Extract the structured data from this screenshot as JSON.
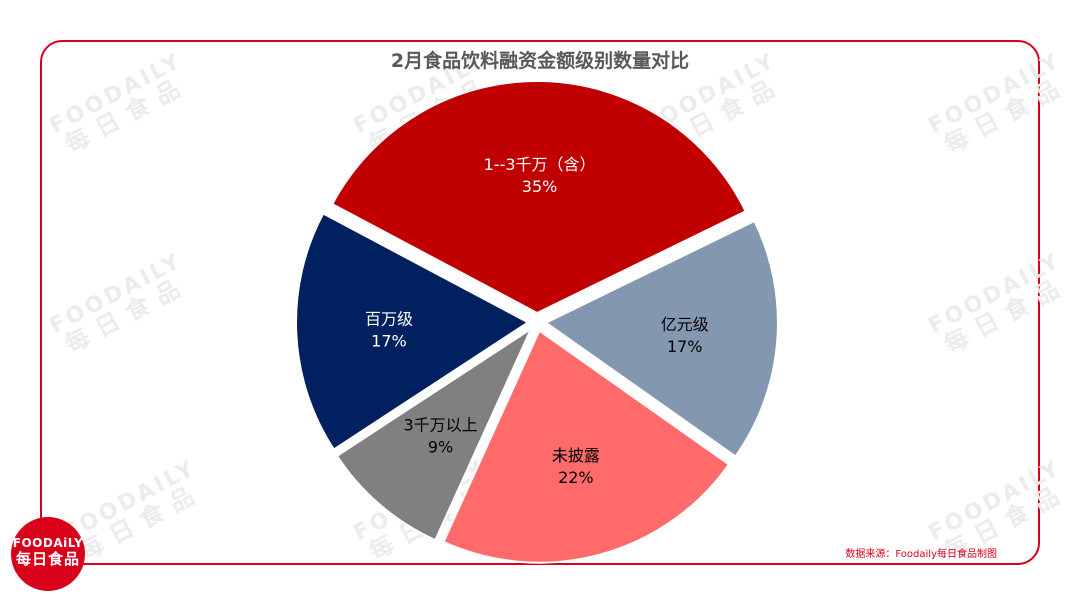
{
  "watermark": {
    "en": "FOODAILY",
    "zh": "每日食品"
  },
  "logo": {
    "en": "FOODAiLY",
    "zh": "每日食品"
  },
  "source": "数据来源：Foodaily每日食品制图",
  "colors": {
    "frame": "#d9001b",
    "title": "#595959"
  },
  "chart_data": {
    "type": "pie",
    "title": "2月食品饮料融资金额级别数量对比",
    "slices": [
      {
        "label": "1--3千万（含）",
        "value": 35,
        "value_label": "35%",
        "color": "#c00000",
        "text_color": "#ffffff"
      },
      {
        "label": "亿元级",
        "value": 17,
        "value_label": "17%",
        "color": "#8497b0",
        "text_color": "#000000"
      },
      {
        "label": "未披露",
        "value": 22,
        "value_label": "22%",
        "color": "#ff6b6b",
        "text_color": "#000000"
      },
      {
        "label": "3千万以上",
        "value": 9,
        "value_label": "9%",
        "color": "#808080",
        "text_color": "#000000"
      },
      {
        "label": "百万级",
        "value": 17,
        "value_label": "17%",
        "color": "#002060",
        "text_color": "#ffffff"
      }
    ],
    "start_angle_deg": -152,
    "direction": "clockwise",
    "exploded": true,
    "legend": "none"
  }
}
